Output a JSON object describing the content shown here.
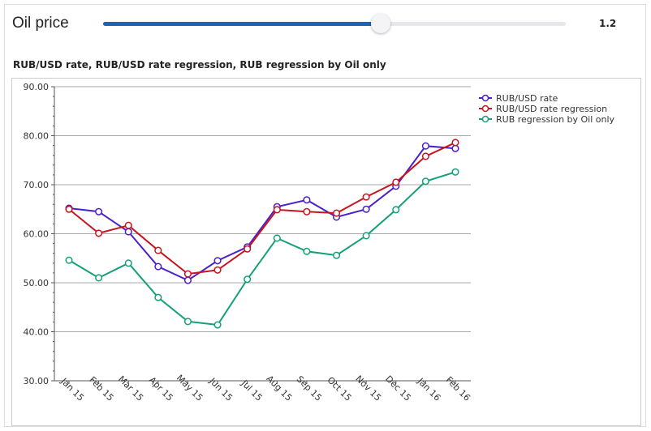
{
  "control": {
    "label": "Oil price",
    "value": "1.2",
    "slider_fraction": 0.6
  },
  "chart_data": {
    "type": "line",
    "title": "RUB/USD rate, RUB/USD rate regression, RUB regression by Oil only",
    "categories": [
      "Jan 15",
      "Feb 15",
      "Mar 15",
      "Apr 15",
      "May 15",
      "Jun 15",
      "Jul 15",
      "Aug 15",
      "Sep 15",
      "Oct 15",
      "Nov 15",
      "Dec 15",
      "Jan 16",
      "Feb 16"
    ],
    "ylim": [
      30,
      90
    ],
    "yticks": [
      "30.00",
      "40.00",
      "50.00",
      "60.00",
      "70.00",
      "80.00",
      "90.00"
    ],
    "legend_position": "top-right",
    "series": [
      {
        "name": "RUB/USD rate",
        "color": "#4a1fcc",
        "values": [
          65.2,
          64.5,
          60.4,
          53.3,
          50.5,
          54.5,
          57.3,
          65.5,
          66.9,
          63.4,
          65.0,
          69.7,
          77.9,
          77.4
        ]
      },
      {
        "name": "RUB/USD rate regression",
        "color": "#c8141e",
        "values": [
          65.0,
          60.1,
          61.7,
          56.6,
          51.8,
          52.6,
          56.9,
          64.9,
          64.5,
          64.2,
          67.5,
          70.5,
          75.8,
          78.6
        ]
      },
      {
        "name": "RUB regression by Oil only",
        "color": "#14a078",
        "values": [
          54.6,
          51.0,
          54.0,
          47.0,
          42.1,
          41.4,
          50.7,
          59.1,
          56.4,
          55.6,
          59.6,
          64.9,
          70.7,
          72.6
        ]
      }
    ]
  }
}
